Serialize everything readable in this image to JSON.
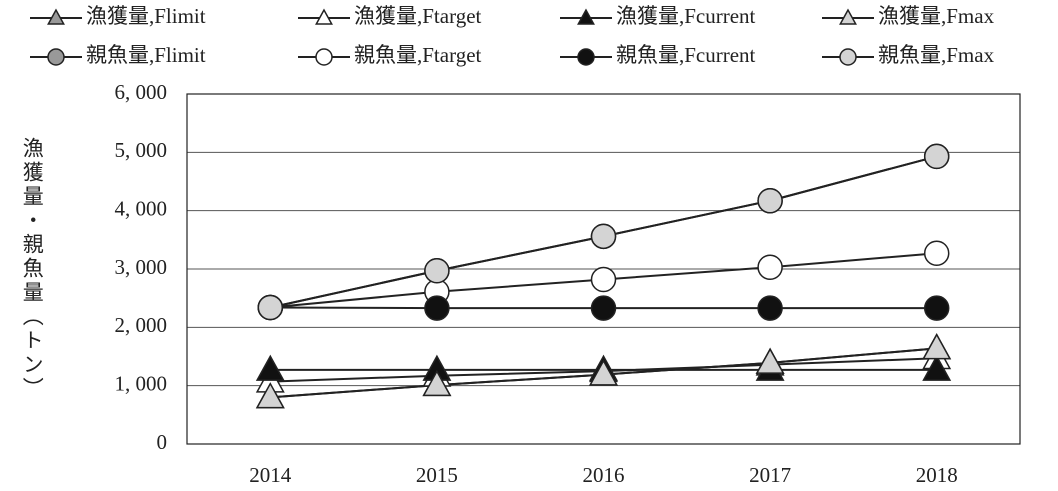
{
  "chart_data": {
    "type": "line",
    "y_label": "漁獲量・親魚量（トン）",
    "categories": [
      "2014",
      "2015",
      "2016",
      "2017",
      "2018"
    ],
    "ylim": [
      0,
      6000
    ],
    "yticks": [
      0,
      {
        "value": 1000,
        "label": "1, 000"
      },
      {
        "value": 2000,
        "label": "2, 000"
      },
      {
        "value": 3000,
        "label": "3, 000"
      },
      {
        "value": 4000,
        "label": "4, 000"
      },
      {
        "value": 5000,
        "label": "5, 000"
      },
      {
        "value": 6000,
        "label": "6, 000"
      }
    ],
    "grid": true,
    "series": [
      {
        "name": "漁獲量,Flimit",
        "marker": "triangle",
        "color": "#999999",
        "values": [
          800,
          1010,
          1190,
          1390,
          1640
        ]
      },
      {
        "name": "漁獲量,Ftarget",
        "marker": "triangle",
        "color": "#ffffff",
        "values": [
          1070,
          1170,
          1250,
          1360,
          1470
        ]
      },
      {
        "name": "漁獲量,Fcurrent",
        "marker": "triangle",
        "color": "#111111",
        "values": [
          1270,
          1270,
          1270,
          1270,
          1270
        ]
      },
      {
        "name": "漁獲量,Fmax",
        "marker": "triangle",
        "color": "#d4d4d4",
        "values": [
          800,
          1010,
          1190,
          1390,
          1640
        ]
      },
      {
        "name": "親魚量,Flimit",
        "marker": "circle",
        "color": "#999999",
        "values": [
          2340,
          2970,
          3560,
          4170,
          4930
        ]
      },
      {
        "name": "親魚量,Ftarget",
        "marker": "circle",
        "color": "#ffffff",
        "values": [
          2340,
          2610,
          2820,
          3030,
          3270
        ]
      },
      {
        "name": "親魚量,Fcurrent",
        "marker": "circle",
        "color": "#111111",
        "values": [
          2340,
          2330,
          2330,
          2330,
          2330
        ]
      },
      {
        "name": "親魚量,Fmax",
        "marker": "circle",
        "color": "#d4d4d4",
        "values": [
          2340,
          2970,
          3560,
          4170,
          4930
        ]
      }
    ]
  }
}
